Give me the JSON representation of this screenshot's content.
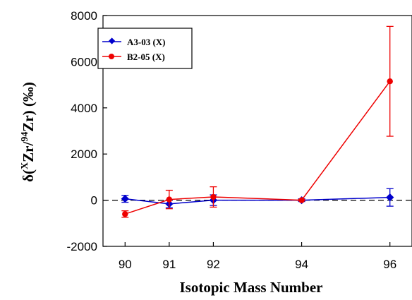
{
  "chart_data": {
    "type": "line",
    "xlabel": "Isotopic Mass Number",
    "ylabel": {
      "prefix": "δ(",
      "sup1": "X",
      "mid1": "Zr/",
      "sup2": "94",
      "mid2": "Zr) (‰)"
    },
    "x_ticks": [
      "90",
      "91",
      "92",
      "94",
      "96"
    ],
    "y_ticks": [
      "-2000",
      "0",
      "2000",
      "4000",
      "6000",
      "8000"
    ],
    "xlim": [
      89.5,
      96.5
    ],
    "ylim": [
      -2000,
      8000
    ],
    "zero_line": true,
    "legend_position": "top-left",
    "series": [
      {
        "name": "A3-03 (X)",
        "color": "#0000cc",
        "marker": "diamond",
        "x": [
          90,
          91,
          92,
          94,
          96
        ],
        "y": [
          60,
          -160,
          0,
          0,
          120
        ],
        "err": [
          150,
          170,
          230,
          60,
          380
        ]
      },
      {
        "name": "B2-05 (X)",
        "color": "#ee0000",
        "marker": "circle",
        "x": [
          90,
          91,
          92,
          94,
          96
        ],
        "y": [
          -600,
          30,
          140,
          0,
          5150
        ],
        "err": [
          140,
          400,
          440,
          30,
          2380
        ]
      }
    ]
  }
}
